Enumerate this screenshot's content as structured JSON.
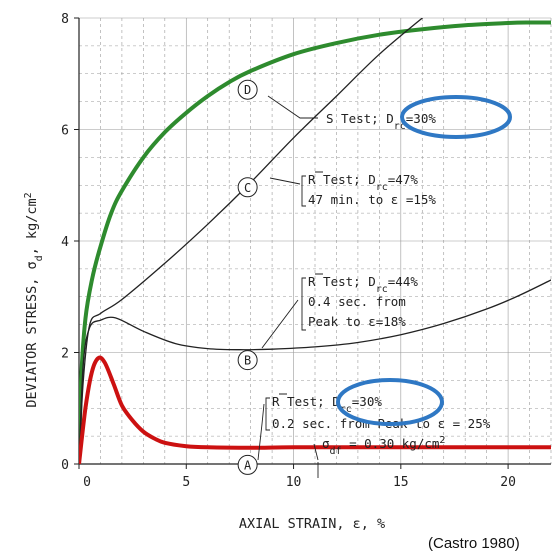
{
  "chart_data": {
    "type": "line",
    "xlabel": "AXIAL STRAIN, ε, %",
    "ylabel": "DEVIATOR STRESS, σd, kg/cm²",
    "xlim": [
      0,
      22
    ],
    "ylim": [
      0,
      8
    ],
    "x_ticks": [
      "0",
      "5",
      "10",
      "15",
      "20"
    ],
    "y_ticks": [
      "0",
      "2",
      "4",
      "6",
      "8"
    ],
    "grid": true,
    "series": [
      {
        "color": "#2e8b2e",
        "x": [
          0,
          0.1,
          0.3,
          0.6,
          1.0,
          1.5,
          2.0,
          3.0,
          4.0,
          5.0,
          6.0,
          7.0,
          8.0,
          10.0,
          12.0,
          14.0,
          16.0,
          18.0,
          20.0,
          21.0,
          22.0
        ],
        "y": [
          0,
          1.5,
          2.6,
          3.3,
          3.9,
          4.5,
          4.9,
          5.5,
          5.95,
          6.3,
          6.6,
          6.85,
          7.05,
          7.35,
          7.55,
          7.7,
          7.8,
          7.87,
          7.91,
          7.92,
          7.92
        ]
      },
      {
        "color": "#222222",
        "x": [
          0,
          0.2,
          0.5,
          1.0,
          2.0,
          4.0,
          6.0,
          8.0,
          10.0,
          12.0,
          14.0,
          16.0
        ],
        "y": [
          0,
          1.5,
          2.5,
          2.7,
          2.95,
          3.6,
          4.3,
          5.05,
          5.85,
          6.6,
          7.35,
          8.0
        ]
      },
      {
        "color": "#222222",
        "x": [
          0,
          0.2,
          0.5,
          1.0,
          1.7,
          3.0,
          4.5,
          6.0,
          7.5,
          9.0,
          11.0,
          13.0,
          15.0,
          17.0,
          19.0,
          20.5,
          22.0
        ],
        "y": [
          0,
          1.8,
          2.45,
          2.58,
          2.62,
          2.38,
          2.16,
          2.07,
          2.05,
          2.06,
          2.1,
          2.18,
          2.32,
          2.52,
          2.78,
          3.02,
          3.3
        ]
      },
      {
        "color": "#cc1111",
        "x": [
          0,
          0.3,
          0.6,
          0.9,
          1.2,
          1.6,
          2.0,
          2.5,
          3.0,
          3.5,
          4.0,
          5.0,
          6.0,
          8.0,
          10.0,
          14.0,
          18.0,
          22.0
        ],
        "y": [
          0,
          1.0,
          1.65,
          1.9,
          1.82,
          1.45,
          1.05,
          0.78,
          0.58,
          0.46,
          0.38,
          0.32,
          0.3,
          0.29,
          0.3,
          0.3,
          0.3,
          0.3
        ]
      }
    ],
    "point_labels": [
      {
        "text": "D",
        "x": 8.0,
        "y": 6.75
      },
      {
        "text": "C",
        "x": 8.0,
        "y": 5.0
      },
      {
        "text": "B",
        "x": 8.0,
        "y": 1.9
      },
      {
        "text": "A",
        "x": 8.0,
        "y": 0.02
      }
    ],
    "annotations": {
      "s_test": {
        "prefix": "S Test; D",
        "sub": "rc",
        "suffix": "=30%"
      },
      "r_test_c": {
        "line1_prefix": "R Test; D",
        "line1_sub": "rc",
        "line1_suffix": "=47%",
        "line2": "47 min. to ε =15%"
      },
      "r_test_b": {
        "line1_prefix": "R Test; D",
        "line1_sub": "rc",
        "line1_suffix": "=44%",
        "line2": "0.4 sec. from",
        "line3": "Peak to ε=18%"
      },
      "r_test_a": {
        "line1_prefix": "R Test; D",
        "line1_sub": "rc",
        "line1_suffix": "=30%",
        "line2": "0.2 sec. from Peak to ε = 25%"
      },
      "sigma_df": {
        "symbol": "σ",
        "sub": "df",
        "value": " = 0.30 kg/cm",
        "sup": "2"
      }
    },
    "source": "(Castro 1980)",
    "highlight_color": "#2f78c4"
  }
}
